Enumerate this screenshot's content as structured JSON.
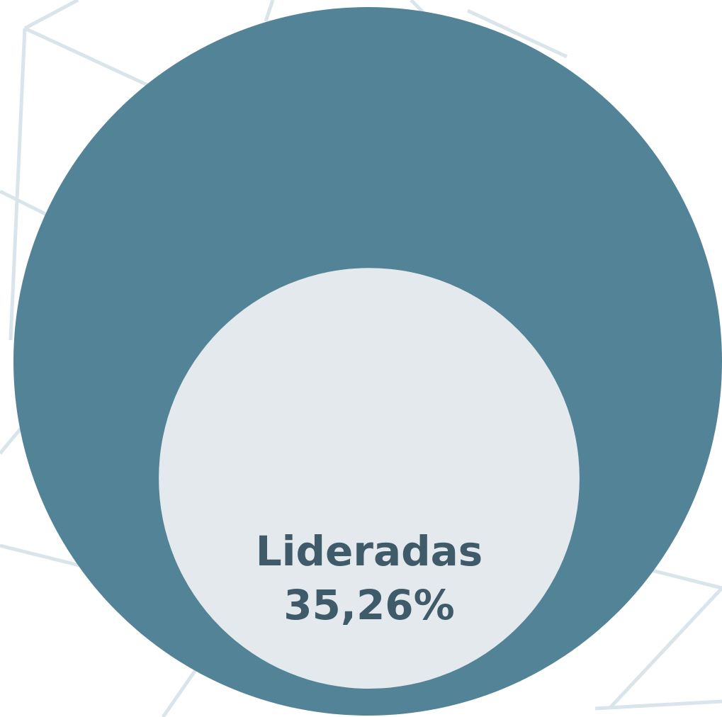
{
  "chart_data": {
    "type": "nested-circle",
    "categories": [
      "Lideradas"
    ],
    "values": [
      35.26
    ],
    "value_labels": [
      "35,26%"
    ],
    "ylim": [
      0,
      100
    ],
    "colors": {
      "outer": "#528396",
      "inner": "#e3e9ec"
    }
  }
}
